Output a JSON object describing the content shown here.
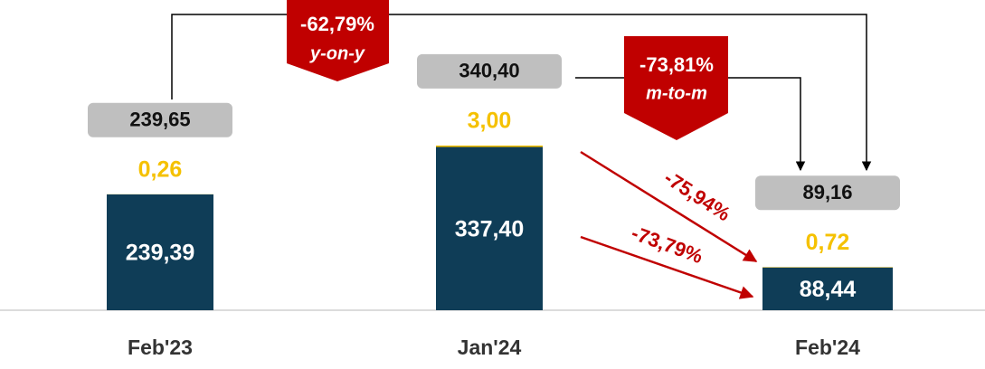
{
  "chart_data": {
    "type": "bar",
    "stacked": true,
    "categories": [
      "Feb'23",
      "Jan'24",
      "Feb'24"
    ],
    "series": [
      {
        "color": "#0f3d57",
        "values": [
          239.39,
          337.4,
          88.44
        ],
        "value_labels": [
          "239,39",
          "337,40",
          "88,44"
        ]
      },
      {
        "color": "#f5c100",
        "values": [
          0.26,
          3.0,
          0.72
        ],
        "value_labels": [
          "0,26",
          "3,00",
          "0,72"
        ]
      }
    ],
    "totals": {
      "values": [
        239.65,
        340.4,
        89.16
      ],
      "value_labels": [
        "239,65",
        "340,40",
        "89,16"
      ]
    },
    "annotations": [
      {
        "text": "-62,79%",
        "subtext": "y-on-y"
      },
      {
        "text": "-73,81%",
        "subtext": "m-to-m"
      },
      {
        "text": "-75,94%"
      },
      {
        "text": "-73,79%"
      }
    ]
  }
}
